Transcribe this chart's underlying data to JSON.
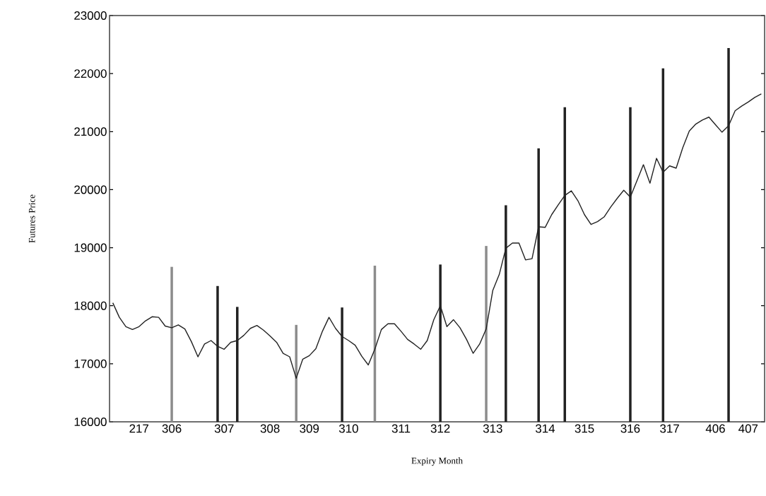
{
  "chart_data": {
    "type": "line",
    "xlabel": "Expiry Month",
    "ylabel": "Futures Price",
    "ylim": [
      16000,
      23000
    ],
    "yticks": [
      16000,
      17000,
      18000,
      19000,
      20000,
      21000,
      22000,
      23000
    ],
    "categories": [
      null,
      null,
      null,
      null,
      "217",
      null,
      null,
      null,
      null,
      "306",
      null,
      null,
      null,
      null,
      null,
      null,
      null,
      "307",
      null,
      null,
      null,
      null,
      null,
      null,
      "308",
      null,
      null,
      null,
      null,
      null,
      "309",
      null,
      null,
      null,
      null,
      null,
      "310",
      null,
      null,
      null,
      null,
      null,
      null,
      null,
      "311",
      null,
      null,
      null,
      null,
      null,
      "312",
      null,
      null,
      null,
      null,
      null,
      null,
      null,
      "313",
      null,
      null,
      null,
      null,
      null,
      null,
      null,
      "314",
      null,
      null,
      null,
      null,
      null,
      "315",
      null,
      null,
      null,
      null,
      null,
      null,
      "316",
      null,
      null,
      null,
      null,
      null,
      "317",
      null,
      null,
      null,
      null,
      null,
      null,
      "406",
      null,
      null,
      null,
      null,
      "407",
      null,
      null
    ],
    "series": [
      {
        "type": "bar",
        "values": [
          null,
          null,
          null,
          null,
          null,
          null,
          null,
          null,
          null,
          18670,
          null,
          null,
          null,
          null,
          null,
          null,
          18340,
          null,
          null,
          17980,
          null,
          null,
          null,
          null,
          null,
          null,
          null,
          null,
          17670,
          null,
          null,
          null,
          null,
          null,
          null,
          17970,
          null,
          null,
          null,
          null,
          18690,
          null,
          null,
          null,
          null,
          null,
          null,
          null,
          null,
          null,
          18710,
          null,
          null,
          null,
          null,
          null,
          null,
          19030,
          null,
          null,
          19730,
          null,
          null,
          null,
          null,
          20710,
          null,
          null,
          null,
          21420,
          null,
          null,
          null,
          null,
          null,
          null,
          null,
          null,
          null,
          21420,
          null,
          null,
          null,
          null,
          22090,
          null,
          null,
          null,
          null,
          null,
          null,
          null,
          null,
          null,
          22440,
          null,
          null,
          null,
          null,
          null
        ],
        "colors": [
          null,
          null,
          null,
          null,
          null,
          null,
          null,
          null,
          null,
          "#8c8c8c",
          null,
          null,
          null,
          null,
          null,
          null,
          "#222222",
          null,
          null,
          "#222222",
          null,
          null,
          null,
          null,
          null,
          null,
          null,
          null,
          "#8c8c8c",
          null,
          null,
          null,
          null,
          null,
          null,
          "#222222",
          null,
          null,
          null,
          null,
          "#8c8c8c",
          null,
          null,
          null,
          null,
          null,
          null,
          null,
          null,
          null,
          "#222222",
          null,
          null,
          null,
          null,
          null,
          null,
          "#8c8c8c",
          null,
          null,
          "#222222",
          null,
          null,
          null,
          null,
          "#222222",
          null,
          null,
          null,
          "#222222",
          null,
          null,
          null,
          null,
          null,
          null,
          null,
          null,
          null,
          "#222222",
          null,
          null,
          null,
          null,
          "#222222",
          null,
          null,
          null,
          null,
          null,
          null,
          null,
          null,
          null,
          "#222222",
          null,
          null,
          null,
          null,
          null
        ]
      },
      {
        "color": "#222222",
        "values": [
          18050,
          17800,
          17640,
          17590,
          17640,
          17740,
          17810,
          17800,
          17650,
          17620,
          17670,
          17600,
          17380,
          17120,
          17340,
          17400,
          17300,
          17250,
          17370,
          17400,
          17490,
          17610,
          17660,
          17580,
          17480,
          17370,
          17180,
          17120,
          16750,
          17080,
          17140,
          17260,
          17560,
          17800,
          17610,
          17470,
          17400,
          17320,
          17130,
          16980,
          17250,
          17590,
          17690,
          17690,
          17560,
          17420,
          17340,
          17250,
          17400,
          17760,
          18000,
          17640,
          17760,
          17620,
          17420,
          17180,
          17340,
          17600,
          18260,
          18540,
          18990,
          19080,
          19080,
          18790,
          18810,
          19360,
          19350,
          19570,
          19740,
          19900,
          19980,
          19810,
          19570,
          19400,
          19450,
          19530,
          19700,
          19850,
          19990,
          19870,
          20150,
          20430,
          20110,
          20540,
          20300,
          20410,
          20370,
          20720,
          21010,
          21130,
          21200,
          21250,
          21120,
          20990,
          21100,
          21360,
          21440,
          21510,
          21590,
          21650
        ]
      }
    ]
  }
}
